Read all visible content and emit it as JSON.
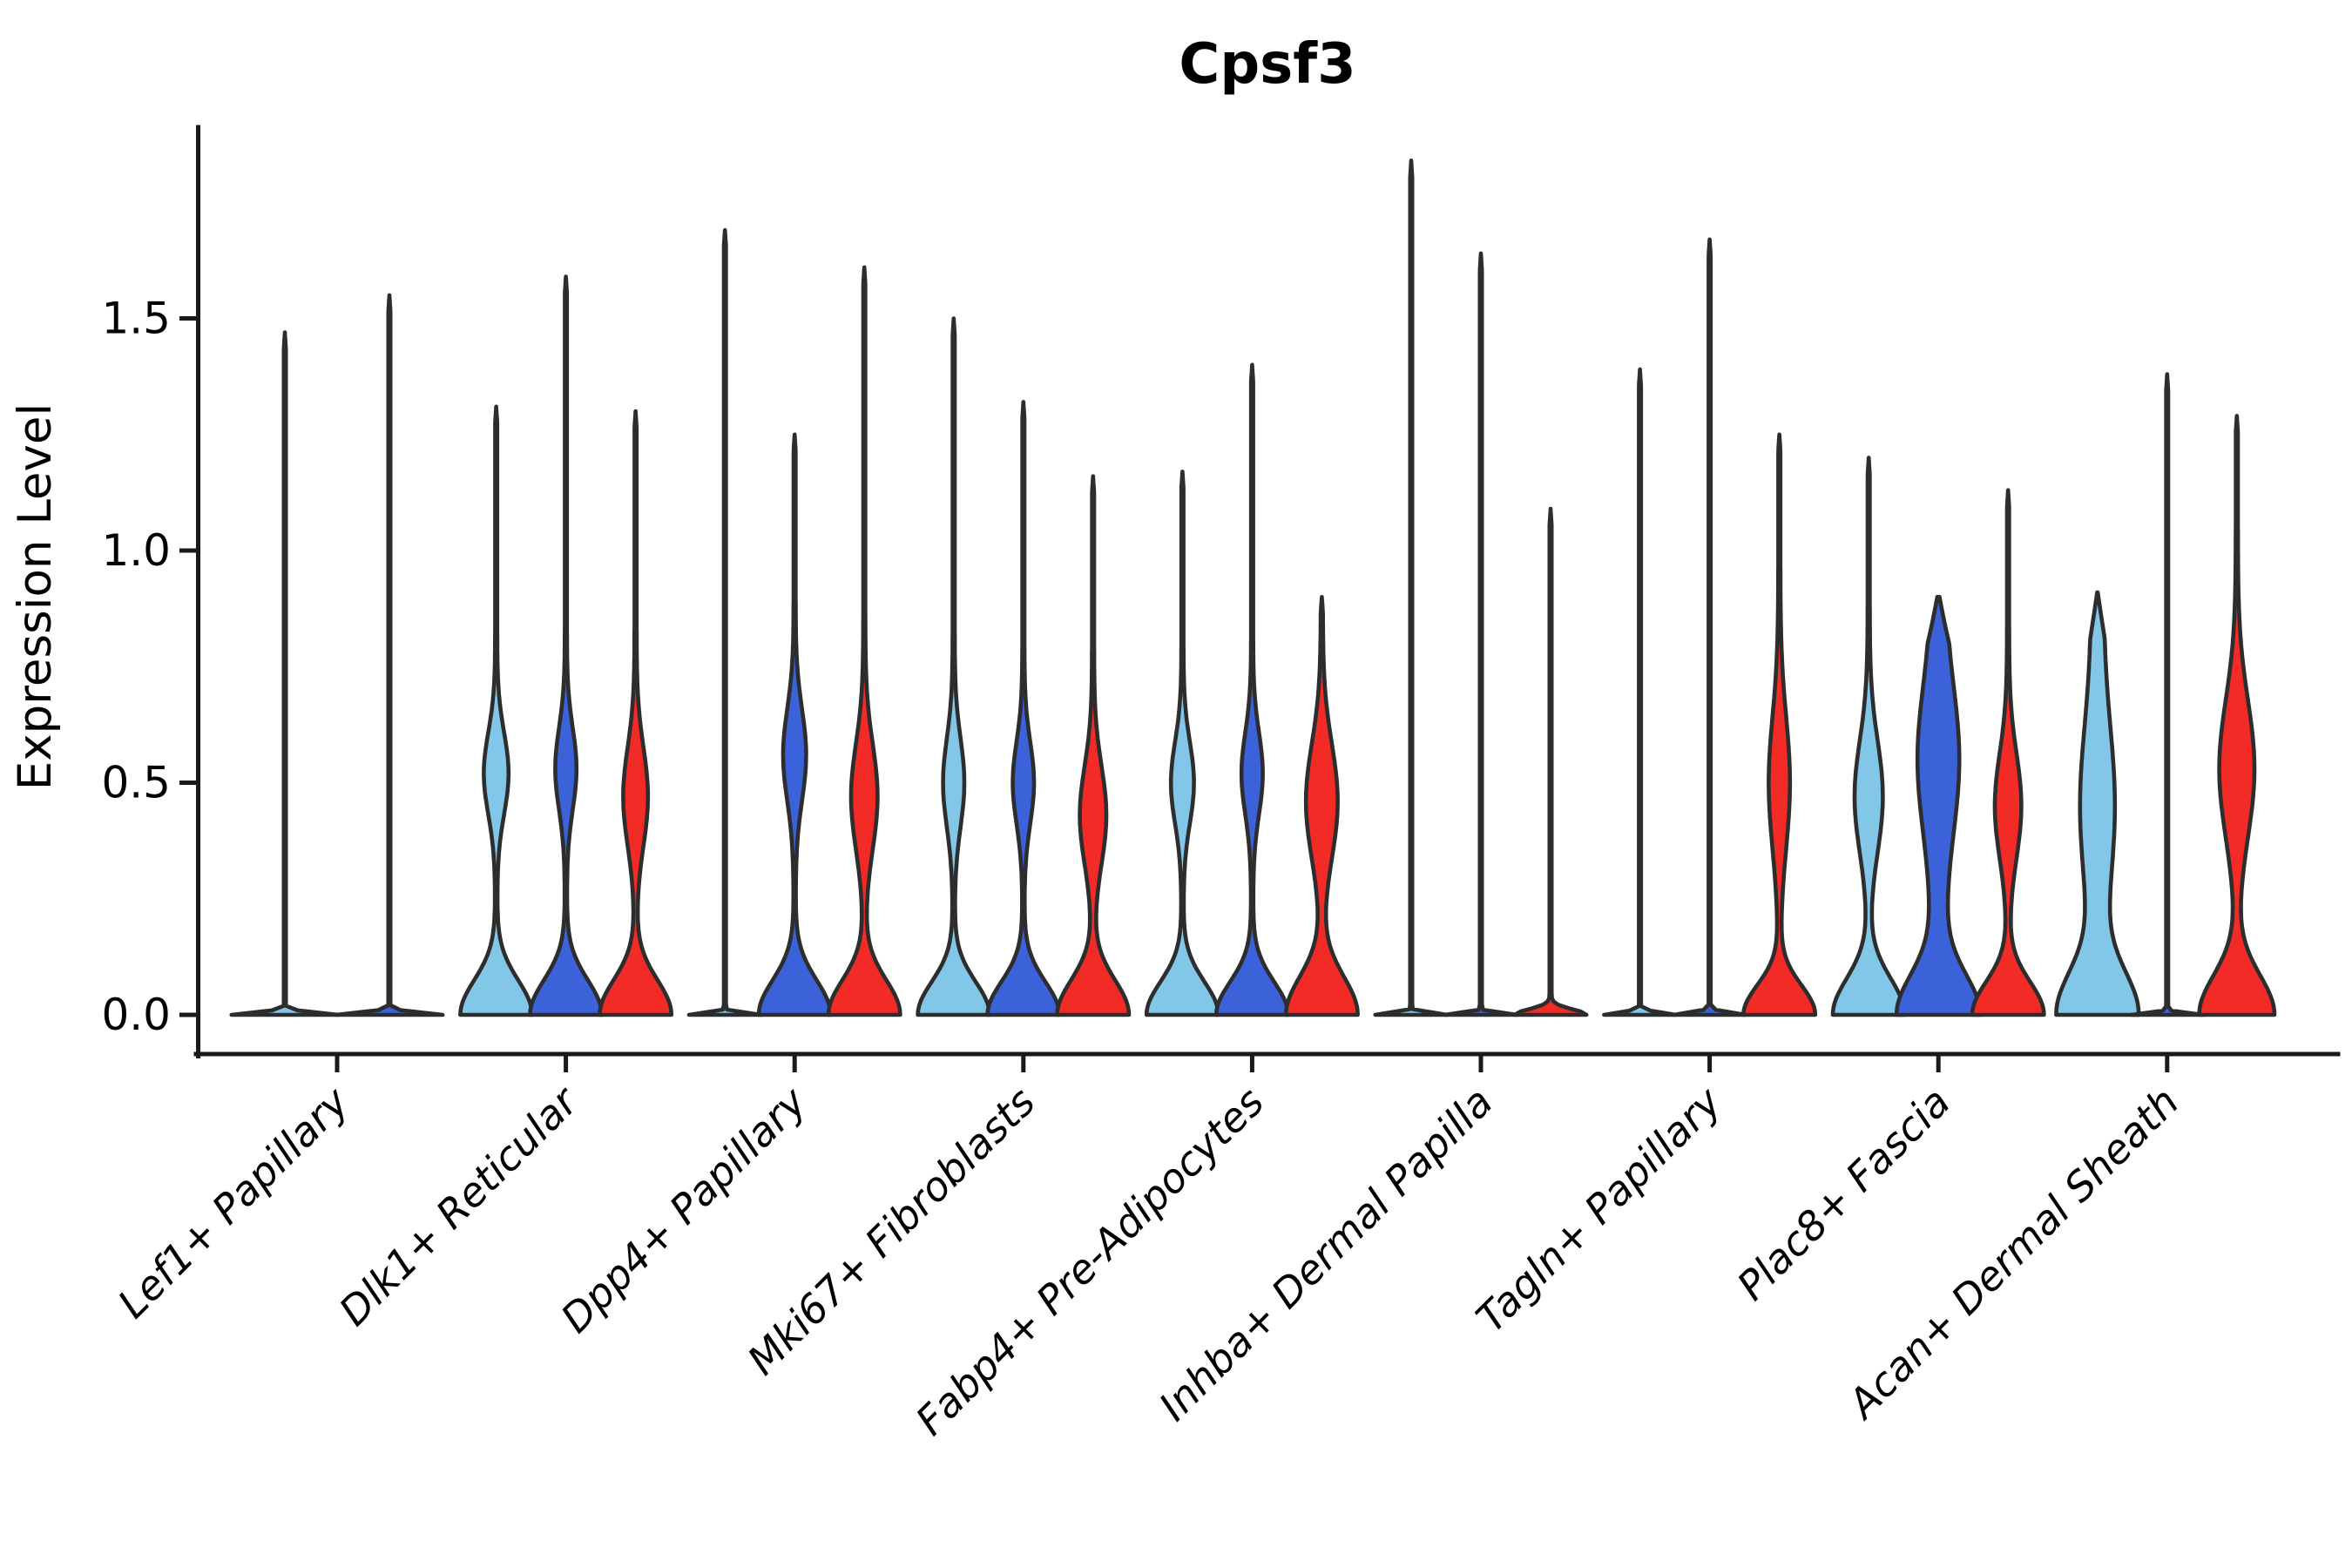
{
  "title": "Cpsf3",
  "ylabel": "Expression Level",
  "colors": {
    "light-blue": "#82C7E8",
    "royal-blue": "#3B62D9",
    "red": "#F32B27",
    "outline": "#2d2d2d"
  },
  "chart_data": {
    "type": "violin",
    "title": "Cpsf3",
    "xlabel": "",
    "ylabel": "Expression Level",
    "ylim": [
      -0.09,
      1.92
    ],
    "grid": false,
    "legend": false,
    "yticks": [
      {
        "label": "0.0",
        "value": 0.0
      },
      {
        "label": "0.5",
        "value": 0.5
      },
      {
        "label": "1.0",
        "value": 1.0
      },
      {
        "label": "1.5",
        "value": 1.5
      }
    ],
    "categories": [
      "Lef1+ Papillary",
      "Dlk1+ Reticular",
      "Dpp4+ Papillary",
      "Mki67+ Fibroblasts",
      "Fabp4+ Pre-Adipocytes",
      "Inhba+ Dermal Papilla",
      "Tagln+ Papillary",
      "Plac8+ Fascia",
      "Acan+ Dermal Sheath"
    ],
    "groups": [
      {
        "category": "Lef1+ Papillary",
        "violins": [
          {
            "color": "light-blue",
            "max": 1.47,
            "shape": "spike",
            "base_halfwidth": 60,
            "base_sigma": 0.008,
            "bulge": null
          },
          {
            "color": "royal-blue",
            "max": 1.55,
            "shape": "spike",
            "base_halfwidth": 60,
            "base_sigma": 0.008,
            "bulge": null
          }
        ]
      },
      {
        "category": "Dlk1+ Reticular",
        "violins": [
          {
            "color": "light-blue",
            "max": 1.31,
            "shape": "bulged",
            "base_halfwidth": 40,
            "base_sigma": 0.105,
            "bulge": [
              0.52,
              13,
              0.125
            ]
          },
          {
            "color": "royal-blue",
            "max": 1.59,
            "shape": "bulged",
            "base_halfwidth": 40,
            "base_sigma": 0.105,
            "bulge": [
              0.53,
              11,
              0.125
            ]
          },
          {
            "color": "red",
            "max": 1.3,
            "shape": "bulged",
            "base_halfwidth": 40,
            "base_sigma": 0.105,
            "bulge": [
              0.47,
              13,
              0.15
            ]
          }
        ]
      },
      {
        "category": "Dpp4+ Papillary",
        "violins": [
          {
            "color": "light-blue",
            "max": 1.69,
            "shape": "spike",
            "base_halfwidth": 40,
            "base_sigma": 0.006,
            "bulge": null
          },
          {
            "color": "royal-blue",
            "max": 1.25,
            "shape": "bulged",
            "base_halfwidth": 40,
            "base_sigma": 0.105,
            "bulge": [
              0.56,
              12,
              0.14
            ]
          },
          {
            "color": "red",
            "max": 1.61,
            "shape": "bulged",
            "base_halfwidth": 40,
            "base_sigma": 0.105,
            "bulge": [
              0.47,
              14,
              0.16
            ]
          }
        ]
      },
      {
        "category": "Mki67+ Fibroblasts",
        "violins": [
          {
            "color": "light-blue",
            "max": 1.5,
            "shape": "bulged",
            "base_halfwidth": 40,
            "base_sigma": 0.1,
            "bulge": [
              0.5,
              11,
              0.135
            ]
          },
          {
            "color": "royal-blue",
            "max": 1.32,
            "shape": "bulged",
            "base_halfwidth": 40,
            "base_sigma": 0.1,
            "bulge": [
              0.5,
              11,
              0.125
            ]
          },
          {
            "color": "red",
            "max": 1.16,
            "shape": "bulged",
            "base_halfwidth": 40,
            "base_sigma": 0.105,
            "bulge": [
              0.43,
              14,
              0.15
            ]
          }
        ]
      },
      {
        "category": "Fabp4+ Pre-Adipocytes",
        "violins": [
          {
            "color": "light-blue",
            "max": 1.17,
            "shape": "bulged",
            "base_halfwidth": 40,
            "base_sigma": 0.1,
            "bulge": [
              0.5,
              12,
              0.125
            ]
          },
          {
            "color": "royal-blue",
            "max": 1.4,
            "shape": "bulged",
            "base_halfwidth": 40,
            "base_sigma": 0.1,
            "bulge": [
              0.52,
              11,
              0.125
            ]
          },
          {
            "color": "red",
            "max": 0.9,
            "shape": "broad",
            "base_halfwidth": 40,
            "base_sigma": 0.115,
            "bulge": [
              0.46,
              17,
              0.175
            ]
          }
        ]
      },
      {
        "category": "Inhba+ Dermal Papilla",
        "violins": [
          {
            "color": "light-blue",
            "max": 1.84,
            "shape": "spike",
            "base_halfwidth": 40,
            "base_sigma": 0.006,
            "bulge": null
          },
          {
            "color": "royal-blue",
            "max": 1.64,
            "shape": "spike",
            "base_halfwidth": 40,
            "base_sigma": 0.006,
            "bulge": null
          },
          {
            "color": "red",
            "max": 1.09,
            "shape": "bump",
            "base_halfwidth": 40,
            "base_sigma": 0.017,
            "bulge": null
          }
        ]
      },
      {
        "category": "Tagln+ Papillary",
        "violins": [
          {
            "color": "light-blue",
            "max": 1.39,
            "shape": "spike",
            "base_halfwidth": 40,
            "base_sigma": 0.008,
            "bulge": null
          },
          {
            "color": "royal-blue",
            "max": 1.67,
            "shape": "spike",
            "base_halfwidth": 40,
            "base_sigma": 0.008,
            "bulge": null
          },
          {
            "color": "red",
            "max": 1.25,
            "shape": "bulged",
            "base_halfwidth": 40,
            "base_sigma": 0.09,
            "bulge": [
              0.5,
              11,
              0.2
            ]
          }
        ]
      },
      {
        "category": "Plac8+ Fascia",
        "violins": [
          {
            "color": "light-blue",
            "max": 1.2,
            "shape": "bulged",
            "base_halfwidth": 40,
            "base_sigma": 0.11,
            "bulge": [
              0.47,
              15,
              0.17
            ]
          },
          {
            "color": "royal-blue",
            "max": 0.9,
            "shape": "broad",
            "base_halfwidth": 40,
            "base_sigma": 0.12,
            "bulge": [
              0.55,
              16,
              0.22
            ],
            "neck": 8,
            "neck_taper": 0.1
          },
          {
            "color": "red",
            "max": 1.13,
            "shape": "bulged",
            "base_halfwidth": 40,
            "base_sigma": 0.1,
            "bulge": [
              0.45,
              14,
              0.16
            ]
          }
        ]
      },
      {
        "category": "Acan+ Dermal Sheath",
        "violins": [
          {
            "color": "light-blue",
            "max": 0.91,
            "shape": "broad",
            "base_halfwidth": 40,
            "base_sigma": 0.13,
            "bulge": [
              0.45,
              13,
              0.24
            ],
            "neck": 7,
            "neck_taper": 0.1
          },
          {
            "color": "royal-blue",
            "max": 1.38,
            "shape": "spike",
            "base_halfwidth": 40,
            "base_sigma": 0.006,
            "bulge": null
          },
          {
            "color": "red",
            "max": 1.29,
            "shape": "broad",
            "base_halfwidth": 42,
            "base_sigma": 0.12,
            "bulge": [
              0.53,
              19,
              0.21
            ]
          }
        ]
      }
    ]
  }
}
